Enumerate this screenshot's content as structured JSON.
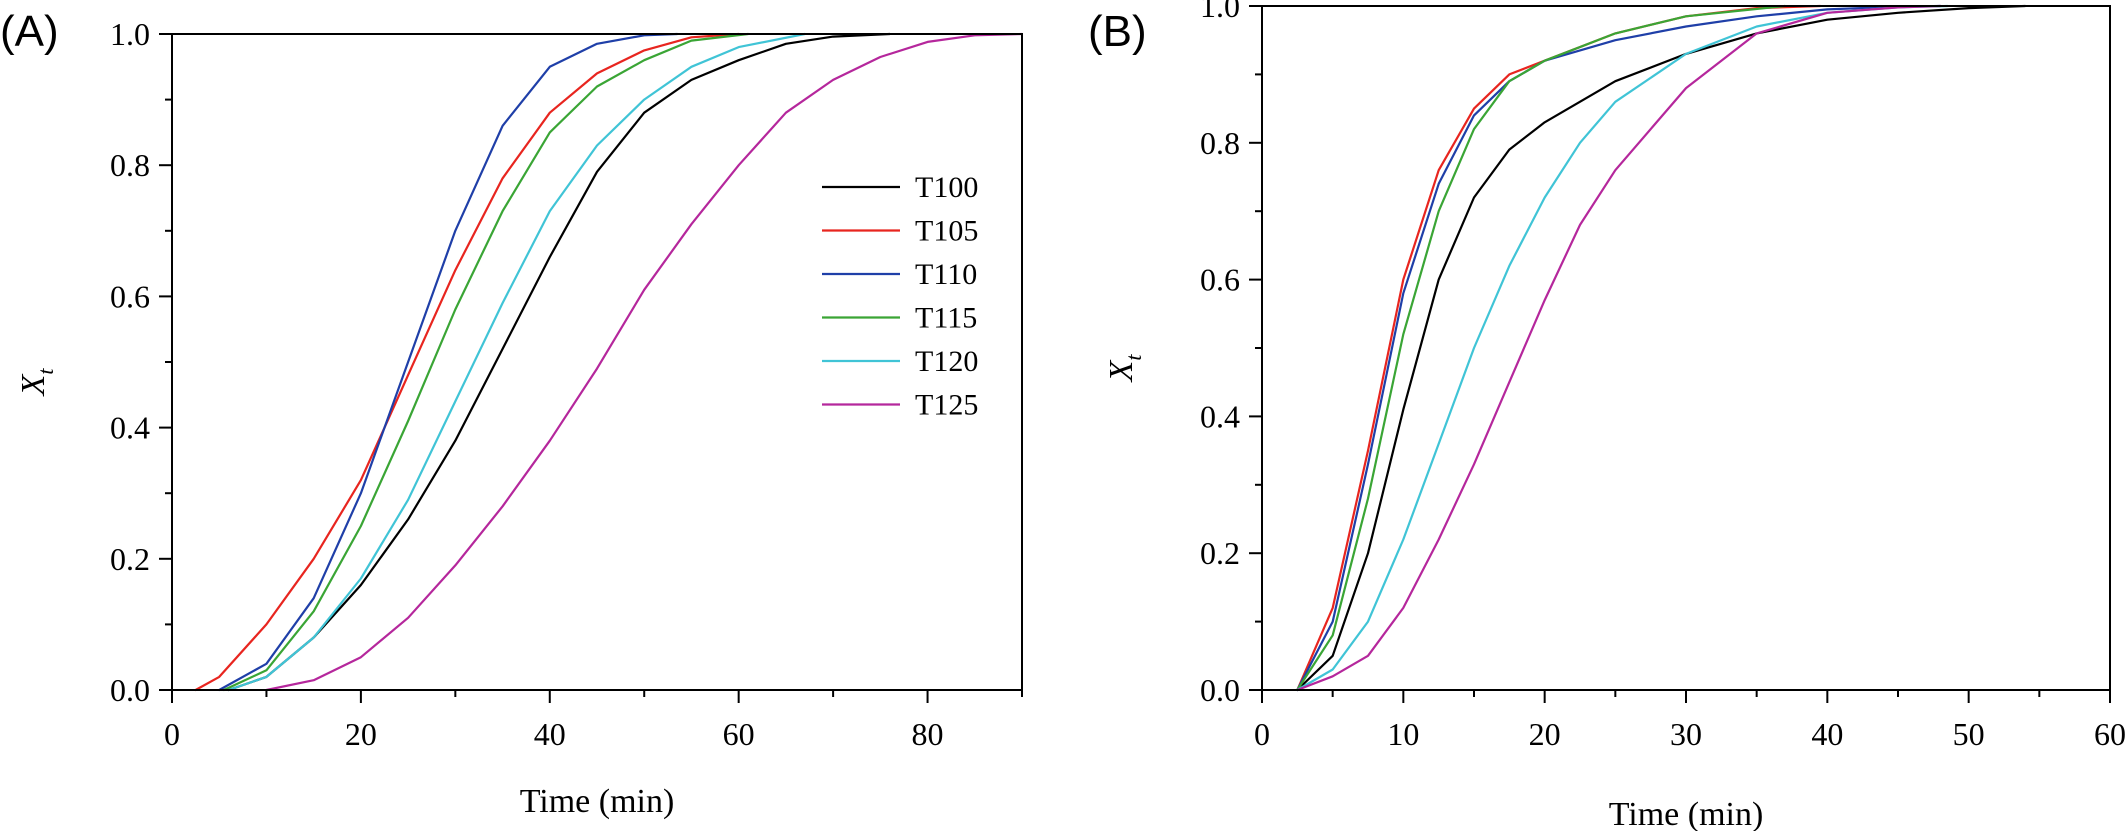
{
  "chart_data": [
    {
      "type": "line",
      "panel_label": "(A)",
      "xlabel": "Time (min)",
      "ylabel": "X",
      "ylabel_subscript": "t",
      "xlim": [
        0,
        90
      ],
      "ylim": [
        0,
        1.0
      ],
      "xticks": [
        0,
        20,
        40,
        60,
        80
      ],
      "xticks_minor": [
        10,
        30,
        50,
        70,
        90
      ],
      "yticks": [
        0.0,
        0.2,
        0.4,
        0.6,
        0.8,
        1.0
      ],
      "yticks_minor": [
        0.1,
        0.3,
        0.5,
        0.7,
        0.9
      ],
      "xtick_labels": [
        "0",
        "20",
        "40",
        "60",
        "80"
      ],
      "ytick_labels": [
        "0.0",
        "0.2",
        "0.4",
        "0.6",
        "0.8",
        "1.0"
      ],
      "legend_placement": "center-right",
      "legend": [
        "T100",
        "T105",
        "T110",
        "T115",
        "T120",
        "T125"
      ],
      "series": [
        {
          "name": "T100",
          "color": "#000000",
          "x": [
            6,
            10,
            15,
            20,
            25,
            30,
            35,
            40,
            45,
            50,
            55,
            60,
            65,
            70,
            76
          ],
          "y": [
            0,
            0.02,
            0.08,
            0.16,
            0.26,
            0.38,
            0.52,
            0.66,
            0.79,
            0.88,
            0.93,
            0.96,
            0.985,
            0.996,
            1.0
          ]
        },
        {
          "name": "T105",
          "color": "#e8251f",
          "x": [
            2.5,
            5,
            10,
            15,
            20,
            25,
            30,
            35,
            40,
            45,
            50,
            55,
            60
          ],
          "y": [
            0,
            0.02,
            0.1,
            0.2,
            0.32,
            0.48,
            0.64,
            0.78,
            0.88,
            0.94,
            0.975,
            0.995,
            1.0
          ]
        },
        {
          "name": "T110",
          "color": "#1f3fa8",
          "x": [
            5,
            10,
            15,
            20,
            25,
            30,
            35,
            40,
            45,
            50,
            53.5
          ],
          "y": [
            0,
            0.04,
            0.14,
            0.3,
            0.5,
            0.7,
            0.86,
            0.95,
            0.985,
            0.998,
            1.0
          ]
        },
        {
          "name": "T115",
          "color": "#3aa535",
          "x": [
            5.5,
            10,
            15,
            20,
            25,
            30,
            35,
            40,
            45,
            50,
            55,
            61
          ],
          "y": [
            0,
            0.03,
            0.12,
            0.25,
            0.41,
            0.58,
            0.73,
            0.85,
            0.92,
            0.96,
            0.99,
            1.0
          ]
        },
        {
          "name": "T120",
          "color": "#40c4d6",
          "x": [
            6,
            10,
            15,
            20,
            25,
            30,
            35,
            40,
            45,
            50,
            55,
            60,
            67
          ],
          "y": [
            0,
            0.02,
            0.08,
            0.17,
            0.29,
            0.44,
            0.59,
            0.73,
            0.83,
            0.9,
            0.95,
            0.98,
            1.0
          ]
        },
        {
          "name": "T125",
          "color": "#b5279c",
          "x": [
            10,
            15,
            20,
            25,
            30,
            35,
            40,
            45,
            50,
            55,
            60,
            65,
            70,
            75,
            80,
            85,
            90
          ],
          "y": [
            0,
            0.015,
            0.05,
            0.11,
            0.19,
            0.28,
            0.38,
            0.49,
            0.61,
            0.71,
            0.8,
            0.88,
            0.93,
            0.965,
            0.988,
            0.998,
            1.0
          ]
        }
      ]
    },
    {
      "type": "line",
      "panel_label": "(B)",
      "xlabel": "Time (min)",
      "ylabel": "X",
      "ylabel_subscript": "t",
      "xlim": [
        0,
        60
      ],
      "ylim": [
        0,
        1.0
      ],
      "xticks": [
        0,
        10,
        20,
        30,
        40,
        50,
        60
      ],
      "xticks_minor": [
        5,
        15,
        25,
        35,
        45,
        55
      ],
      "yticks": [
        0.0,
        0.2,
        0.4,
        0.6,
        0.8,
        1.0
      ],
      "yticks_minor": [
        0.1,
        0.3,
        0.5,
        0.7,
        0.9
      ],
      "xtick_labels": [
        "0",
        "10",
        "20",
        "30",
        "40",
        "50",
        "60"
      ],
      "ytick_labels": [
        "0.0",
        "0.2",
        "0.4",
        "0.6",
        "0.8",
        "1.0"
      ],
      "series": [
        {
          "name": "T100",
          "color": "#000000",
          "x": [
            2.5,
            5,
            7.5,
            10,
            12.5,
            15,
            17.5,
            20,
            25,
            30,
            35,
            40,
            45,
            50,
            54
          ],
          "y": [
            0,
            0.05,
            0.2,
            0.41,
            0.6,
            0.72,
            0.79,
            0.83,
            0.89,
            0.93,
            0.96,
            0.98,
            0.99,
            0.997,
            1.0
          ]
        },
        {
          "name": "T105",
          "color": "#e8251f",
          "x": [
            2.5,
            5,
            7.5,
            10,
            12.5,
            15,
            17.5,
            20,
            25,
            30,
            35,
            39.5
          ],
          "y": [
            0,
            0.12,
            0.35,
            0.6,
            0.76,
            0.85,
            0.9,
            0.92,
            0.96,
            0.985,
            0.997,
            1.0
          ]
        },
        {
          "name": "T110",
          "color": "#1f3fa8",
          "x": [
            2.5,
            5,
            7.5,
            10,
            12.5,
            15,
            17.5,
            20,
            25,
            30,
            35,
            40,
            45,
            48
          ],
          "y": [
            0,
            0.1,
            0.33,
            0.58,
            0.74,
            0.84,
            0.89,
            0.92,
            0.95,
            0.97,
            0.985,
            0.995,
            0.999,
            1.0
          ]
        },
        {
          "name": "T115",
          "color": "#3aa535",
          "x": [
            2.5,
            5,
            7.5,
            10,
            12.5,
            15,
            17.5,
            20,
            25,
            30,
            37
          ],
          "y": [
            0,
            0.08,
            0.28,
            0.52,
            0.7,
            0.82,
            0.89,
            0.92,
            0.96,
            0.985,
            1.0
          ]
        },
        {
          "name": "T120",
          "color": "#40c4d6",
          "x": [
            2.5,
            5,
            7.5,
            10,
            12.5,
            15,
            17.5,
            20,
            22.5,
            25,
            30,
            35,
            40,
            45,
            48.5
          ],
          "y": [
            0,
            0.03,
            0.1,
            0.22,
            0.36,
            0.5,
            0.62,
            0.72,
            0.8,
            0.86,
            0.93,
            0.97,
            0.99,
            0.998,
            1.0
          ]
        },
        {
          "name": "T125",
          "color": "#b5279c",
          "x": [
            2.5,
            5,
            7.5,
            10,
            12.5,
            15,
            17.5,
            20,
            22.5,
            25,
            30,
            35,
            40,
            45,
            48
          ],
          "y": [
            0,
            0.02,
            0.05,
            0.12,
            0.22,
            0.33,
            0.45,
            0.57,
            0.68,
            0.76,
            0.88,
            0.96,
            0.99,
            0.998,
            1.0
          ]
        }
      ]
    }
  ]
}
